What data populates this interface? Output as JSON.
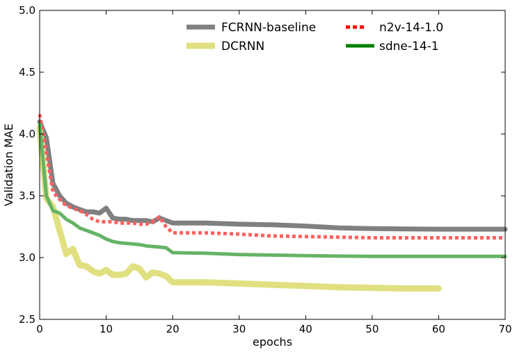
{
  "chart_data": {
    "type": "line",
    "title": "",
    "xlabel": "epochs",
    "ylabel": "Validation MAE",
    "xlim": [
      0,
      70
    ],
    "ylim": [
      2.5,
      5.0
    ],
    "xticks": [
      0,
      10,
      20,
      30,
      40,
      50,
      60,
      70
    ],
    "xtick_labels": [
      "0",
      "10",
      "20",
      "30",
      "40",
      "50",
      "60",
      "70"
    ],
    "yticks": [
      2.5,
      3.0,
      3.5,
      4.0,
      4.5,
      5.0
    ],
    "ytick_labels": [
      "2.5",
      "3.0",
      "3.5",
      "4.0",
      "4.5",
      "5.0"
    ],
    "grid": false,
    "legend_position": "top-right",
    "series": [
      {
        "name": "FCRNN-baseline",
        "color": "#808080",
        "style": "solid",
        "x": [
          0,
          1,
          2,
          3,
          4,
          5,
          6,
          7,
          8,
          9,
          10,
          11,
          12,
          13,
          14,
          15,
          16,
          17,
          18,
          19,
          20,
          25,
          30,
          35,
          40,
          45,
          50,
          55,
          60,
          65,
          70
        ],
        "values": [
          4.1,
          3.97,
          3.6,
          3.5,
          3.44,
          3.41,
          3.39,
          3.37,
          3.37,
          3.36,
          3.4,
          3.32,
          3.31,
          3.31,
          3.3,
          3.3,
          3.3,
          3.29,
          3.32,
          3.3,
          3.28,
          3.28,
          3.27,
          3.265,
          3.255,
          3.24,
          3.235,
          3.232,
          3.23,
          3.23,
          3.23
        ]
      },
      {
        "name": "DCRNN",
        "color": "#e0e080",
        "style": "solid",
        "x": [
          0,
          1,
          2,
          3,
          4,
          5,
          6,
          7,
          8,
          9,
          10,
          11,
          12,
          13,
          14,
          15,
          16,
          17,
          18,
          19,
          20,
          25,
          30,
          35,
          40,
          45,
          50,
          55,
          60
        ],
        "values": [
          4.05,
          3.48,
          3.41,
          3.22,
          3.03,
          3.07,
          2.94,
          2.93,
          2.89,
          2.87,
          2.9,
          2.86,
          2.86,
          2.87,
          2.93,
          2.91,
          2.84,
          2.88,
          2.87,
          2.85,
          2.8,
          2.8,
          2.79,
          2.78,
          2.77,
          2.76,
          2.755,
          2.75,
          2.75
        ]
      },
      {
        "name": "n2v-14-1.0",
        "color": "#ff6060",
        "style": "dashed",
        "x": [
          0,
          1,
          2,
          3,
          4,
          5,
          6,
          7,
          8,
          9,
          10,
          11,
          12,
          13,
          14,
          15,
          16,
          17,
          18,
          19,
          20,
          25,
          30,
          35,
          40,
          45,
          50,
          55,
          60,
          65,
          70
        ],
        "values": [
          4.16,
          3.85,
          3.53,
          3.47,
          3.42,
          3.4,
          3.38,
          3.35,
          3.31,
          3.29,
          3.29,
          3.29,
          3.28,
          3.28,
          3.28,
          3.27,
          3.27,
          3.29,
          3.33,
          3.25,
          3.2,
          3.2,
          3.19,
          3.175,
          3.17,
          3.165,
          3.16,
          3.16,
          3.16,
          3.16,
          3.16
        ]
      },
      {
        "name": "sdne-14-1",
        "color": "#66b366",
        "style": "solid",
        "x": [
          0,
          1,
          2,
          3,
          4,
          5,
          6,
          7,
          8,
          9,
          10,
          11,
          12,
          13,
          14,
          15,
          16,
          17,
          18,
          19,
          20,
          25,
          30,
          35,
          40,
          45,
          50,
          55,
          60,
          65,
          70
        ],
        "values": [
          4.08,
          3.5,
          3.38,
          3.36,
          3.31,
          3.28,
          3.24,
          3.22,
          3.2,
          3.18,
          3.15,
          3.13,
          3.12,
          3.115,
          3.11,
          3.105,
          3.095,
          3.09,
          3.085,
          3.08,
          3.04,
          3.035,
          3.025,
          3.02,
          3.015,
          3.012,
          3.01,
          3.01,
          3.01,
          3.01,
          3.01
        ]
      }
    ]
  }
}
